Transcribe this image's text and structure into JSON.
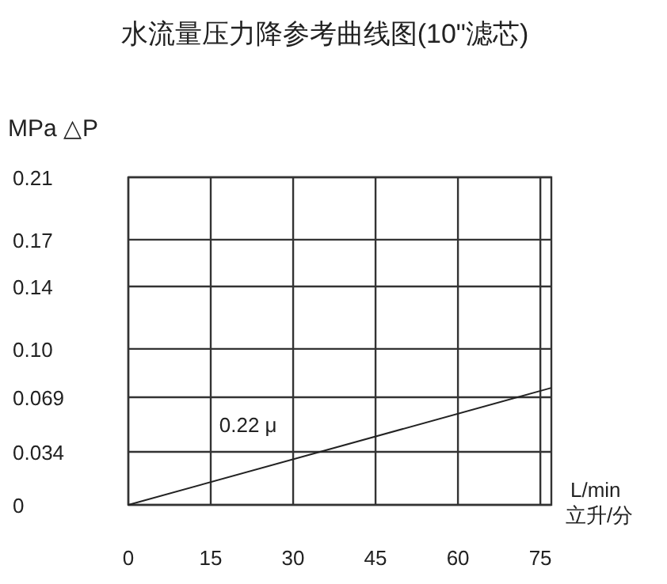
{
  "chart_data": {
    "type": "line",
    "title": "水流量压力降参考曲线图(10\"滤芯)",
    "ylabel": "MPa △P",
    "xlabel": "L/min",
    "annotations": [
      "立升/分"
    ],
    "series": [
      {
        "name": "0.22 μ",
        "color": "#222222",
        "x": [
          0,
          77
        ],
        "values": [
          0,
          0.075
        ]
      }
    ],
    "xlim": [
      0,
      77
    ],
    "xticks": [
      0,
      15,
      30,
      45,
      60,
      75
    ],
    "ylim": [
      0,
      0.21
    ],
    "yticks": [
      0,
      0.034,
      0.069,
      {
        "value": 0.1,
        "label": "0.10"
      },
      0.14,
      0.17,
      0.21
    ],
    "grid": true,
    "marker": "none",
    "line_style": "solid"
  }
}
